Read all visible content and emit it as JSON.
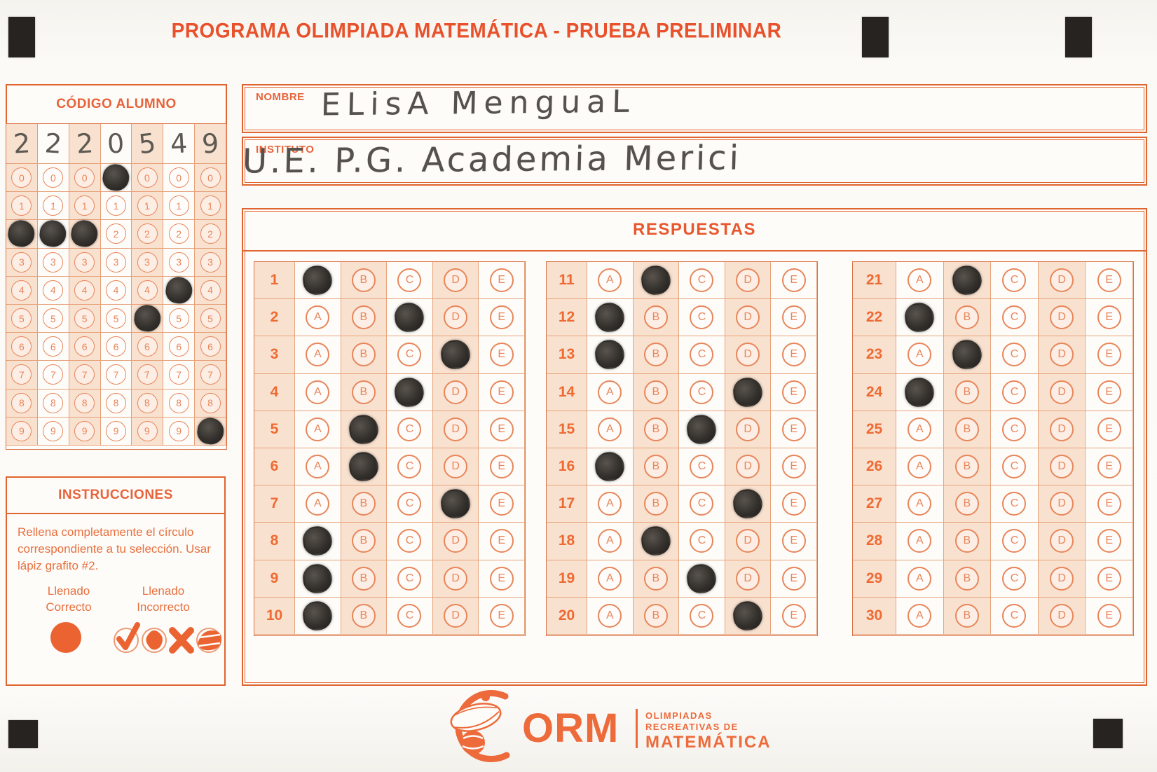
{
  "title": "PROGRAMA OLIMPIADA MATEMÁTICA  - PRUEBA PRELIMINAR",
  "codigo": {
    "header": "CÓDIGO ALUMNO",
    "handwritten_digits": [
      "2",
      "2",
      "2",
      "0",
      "5",
      "4",
      "9"
    ],
    "row_digits": [
      "0",
      "1",
      "2",
      "3",
      "4",
      "5",
      "6",
      "7",
      "8",
      "9"
    ],
    "filled_per_column": [
      "2",
      "2",
      "2",
      "0",
      "5",
      "4",
      "9"
    ]
  },
  "fields": {
    "nombre_label": "NOMBRE",
    "nombre_value": "ELisA MenguaL",
    "instituto_label": "INSTITUTO",
    "instituto_value": "U.E. P.G. Academia Merici"
  },
  "respuestas": {
    "header": "RESPUESTAS",
    "options": [
      "A",
      "B",
      "C",
      "D",
      "E"
    ],
    "answers": [
      {
        "q": 1,
        "marked": "A"
      },
      {
        "q": 2,
        "marked": "C"
      },
      {
        "q": 3,
        "marked": "D"
      },
      {
        "q": 4,
        "marked": "C"
      },
      {
        "q": 5,
        "marked": "B"
      },
      {
        "q": 6,
        "marked": "B"
      },
      {
        "q": 7,
        "marked": "D"
      },
      {
        "q": 8,
        "marked": "A"
      },
      {
        "q": 9,
        "marked": "A"
      },
      {
        "q": 10,
        "marked": "A"
      },
      {
        "q": 11,
        "marked": "B"
      },
      {
        "q": 12,
        "marked": "A"
      },
      {
        "q": 13,
        "marked": "A"
      },
      {
        "q": 14,
        "marked": "D"
      },
      {
        "q": 15,
        "marked": "C"
      },
      {
        "q": 16,
        "marked": "A"
      },
      {
        "q": 17,
        "marked": "D"
      },
      {
        "q": 18,
        "marked": "B"
      },
      {
        "q": 19,
        "marked": "C"
      },
      {
        "q": 20,
        "marked": "D"
      },
      {
        "q": 21,
        "marked": "B"
      },
      {
        "q": 22,
        "marked": "A"
      },
      {
        "q": 23,
        "marked": "B"
      },
      {
        "q": 24,
        "marked": "A"
      },
      {
        "q": 25,
        "marked": null
      },
      {
        "q": 26,
        "marked": null
      },
      {
        "q": 27,
        "marked": null
      },
      {
        "q": 28,
        "marked": null
      },
      {
        "q": 29,
        "marked": null
      },
      {
        "q": 30,
        "marked": null
      }
    ]
  },
  "instrucciones": {
    "header": "INSTRUCCIONES",
    "body": "Rellena completamente el círculo correspondiente a tu selección. Usar lápiz grafito #2.",
    "correct_label": "Llenado\nCorrecto",
    "incorrect_label": "Llenado\nIncorrecto"
  },
  "logo": {
    "acronym": "ORM",
    "line1": "OLIMPIADAS",
    "line2": "RECREATIVAS DE",
    "line3": "MATEMÁTICA"
  },
  "colors": {
    "accent": "#E8633A",
    "accent_strong": "#E8512B",
    "cell_shade": "#F9E1CF",
    "graphite": "#35312D",
    "registration_mark": "#262321"
  }
}
